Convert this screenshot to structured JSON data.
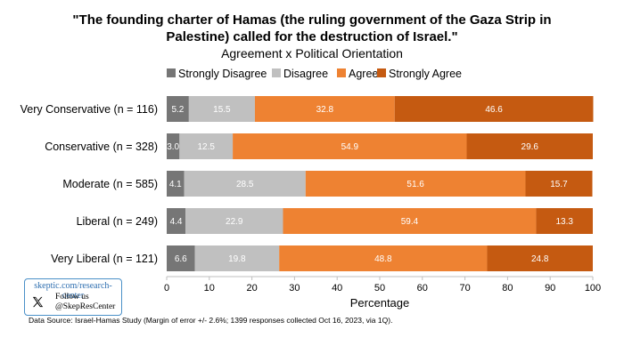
{
  "chart_data": {
    "type": "bar",
    "orientation": "horizontal",
    "stacked": true,
    "title": "\"The founding charter of Hamas (the ruling government of the Gaza Strip in Palestine) called for the destruction of Israel.\"",
    "title_lines": [
      "\"The founding charter of Hamas (the ruling government of the Gaza Strip in",
      "Palestine) called for the destruction of Israel.\""
    ],
    "subtitle": "Agreement x Political Orientation",
    "xlabel": "Percentage",
    "xlim": [
      0,
      100
    ],
    "xticks": [
      0,
      10,
      20,
      30,
      40,
      50,
      60,
      70,
      80,
      90,
      100
    ],
    "categories": [
      "Very Conservative (n = 116)",
      "Conservative (n = 328)",
      "Moderate (n = 585)",
      "Liberal (n = 249)",
      "Very Liberal (n = 121)"
    ],
    "series": [
      {
        "name": "Strongly Disagree",
        "color": "#767676",
        "values": [
          5.2,
          3.0,
          4.1,
          4.4,
          6.6
        ]
      },
      {
        "name": "Disagree",
        "color": "#c0c0c0",
        "values": [
          15.5,
          12.5,
          28.5,
          22.9,
          19.8
        ]
      },
      {
        "name": "Agree",
        "color": "#ee8232",
        "values": [
          32.8,
          54.9,
          51.6,
          59.4,
          48.8
        ]
      },
      {
        "name": "Strongly Agree",
        "color": "#c55a11",
        "values": [
          46.6,
          29.6,
          15.7,
          13.3,
          24.8
        ]
      }
    ],
    "legend_position": "top",
    "grid": false
  },
  "badge": {
    "url": "skeptic.com/research-center",
    "follow_line1": "Follow us",
    "follow_line2": "@SkepResCenter",
    "icon": "x-logo-icon"
  },
  "source_note": "Data Source: Israel-Hamas Study (Margin of error +/- 2.6%; 1399 responses collected Oct 16, 2023, via 1Q)."
}
